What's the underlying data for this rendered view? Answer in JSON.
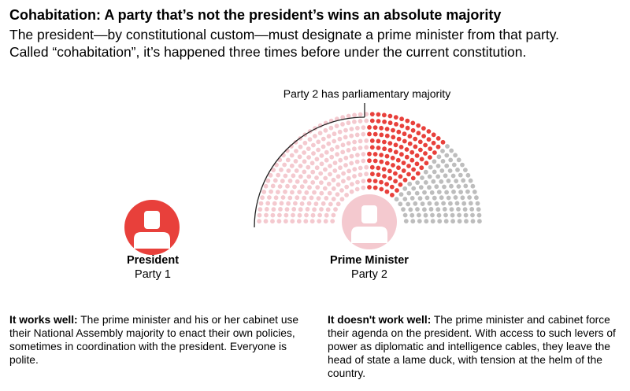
{
  "header": {
    "title": "Cohabitation: A party that’s not the president’s wins an absolute majority",
    "subtitle_line1": "The president—by constitutional custom—must designate a prime minister from that party.",
    "subtitle_line2": "Called “cohabitation”, it’s happened three times before under the current constitution."
  },
  "diagram": {
    "majority_label": "Party 2 has parliamentary majority",
    "colors": {
      "party2_seats": "#f4c9cf",
      "party1_seats": "#e8403b",
      "other_seats": "#bdbdbd",
      "president_avatar": "#e8403b",
      "pm_avatar": "#f4c9cf"
    },
    "seat_shares": {
      "party2": 0.5,
      "party1": 0.25,
      "other": 0.25
    }
  },
  "president": {
    "role": "President",
    "party": "Party 1"
  },
  "prime_minister": {
    "role": "Prime Minister",
    "party": "Party 2"
  },
  "notes": {
    "left_lead": "It works well:",
    "left_body": " The prime minister and his or her cabinet use their National Assembly majority to enact their own policies, sometimes in coordination with the president. Everyone is polite.",
    "right_lead": "It doesn't work well:",
    "right_body": " The prime minister and cabinet force their agenda on the president. With access to such levers of power as diplomatic and intelligence cables, they leave the head of state a lame duck, with tension at the helm of the country."
  }
}
